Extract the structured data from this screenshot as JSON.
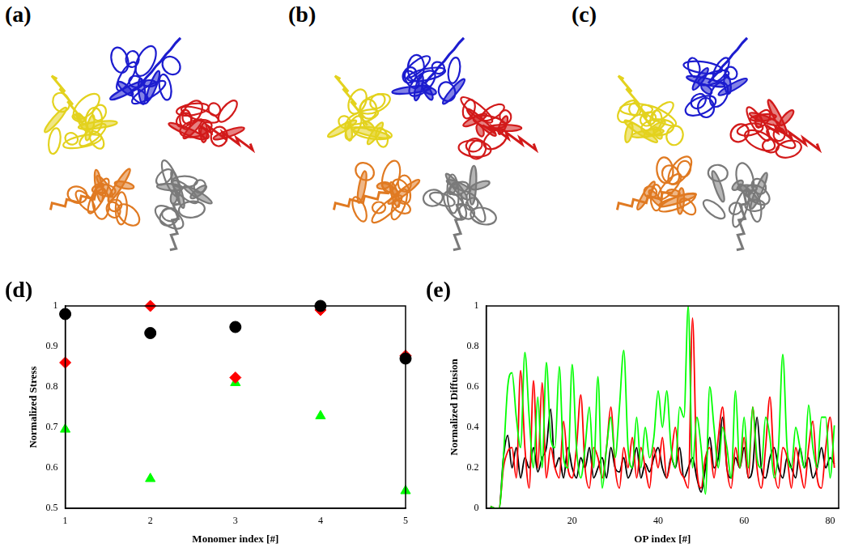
{
  "images": [
    {
      "label": "(a)"
    },
    {
      "label": "(b)"
    },
    {
      "label": "(c)"
    }
  ],
  "chart_data": [
    {
      "panel_label": "(d)",
      "type": "scatter",
      "x_label": "Monomer index [#]",
      "y_label": "Normalized Stress",
      "x": [
        1,
        2,
        3,
        4,
        5
      ],
      "xlim": [
        1,
        5
      ],
      "xticks": [
        1,
        2,
        3,
        4,
        5
      ],
      "ylim": [
        0.5,
        1
      ],
      "yticks": [
        0.5,
        0.6,
        0.7,
        0.8,
        0.9,
        1
      ],
      "grid": false,
      "series": [
        {
          "color": "#000000",
          "marker": "circle",
          "values": [
            0.98,
            0.933,
            0.948,
            1.0,
            0.87
          ]
        },
        {
          "color": "#ff0000",
          "marker": "diamond",
          "values": [
            0.86,
            1.0,
            0.823,
            0.99,
            0.877
          ]
        },
        {
          "color": "#00ff00",
          "marker": "triangle",
          "values": [
            0.695,
            0.573,
            0.81,
            0.728,
            0.543
          ]
        }
      ]
    },
    {
      "panel_label": "(e)",
      "type": "line",
      "x_label": "OP index [#]",
      "y_label": "Normalized Diffusion",
      "x": [
        1,
        2,
        3,
        4,
        5,
        6,
        7,
        8,
        9,
        10,
        11,
        12,
        13,
        14,
        15,
        16,
        17,
        18,
        19,
        20,
        21,
        22,
        23,
        24,
        25,
        26,
        27,
        28,
        29,
        30,
        31,
        32,
        33,
        34,
        35,
        36,
        37,
        38,
        39,
        40,
        41,
        42,
        43,
        44,
        45,
        46,
        47,
        48,
        49,
        50,
        51,
        52,
        53,
        54,
        55,
        56,
        57,
        58,
        59,
        60,
        61,
        62,
        63,
        64,
        65,
        66,
        67,
        68,
        69,
        70,
        71,
        72,
        73,
        74,
        75,
        76,
        77,
        78,
        79,
        80,
        81
      ],
      "xlim": [
        0,
        82
      ],
      "xticks": [
        20,
        40,
        60,
        80
      ],
      "ylim": [
        0,
        1
      ],
      "yticks": [
        0,
        0.2,
        0.4,
        0.6,
        0.8,
        1
      ],
      "grid": false,
      "series": [
        {
          "color": "#00ff00",
          "values": [
            0.01,
            0,
            0,
            0.25,
            0.6,
            0.67,
            0.45,
            0.3,
            0.77,
            0.45,
            0.2,
            0.55,
            0.2,
            0.72,
            0.35,
            0.3,
            0.7,
            0.25,
            0.2,
            0.71,
            0.3,
            0.15,
            0.3,
            0.5,
            0.2,
            0.65,
            0.1,
            0.3,
            0.45,
            0.25,
            0.5,
            0.78,
            0.3,
            0.2,
            0.45,
            0.2,
            0.4,
            0.25,
            0.35,
            0.58,
            0.4,
            0.58,
            0.3,
            0.2,
            0.5,
            0.45,
            1.0,
            0.2,
            0.45,
            0.3,
            0.07,
            0.6,
            0.4,
            0.2,
            0.4,
            0.3,
            0.15,
            0.58,
            0.2,
            0.45,
            0.2,
            0.5,
            0.25,
            0.2,
            0.45,
            0.35,
            0.15,
            0.3,
            0.76,
            0.3,
            0.2,
            0.4,
            0.3,
            0.2,
            0.51,
            0.3,
            0.2,
            0.45,
            0.45,
            0.15,
            0.41
          ]
        },
        {
          "color": "#ff0000",
          "values": [
            0.01,
            0,
            0,
            0.2,
            0.28,
            0.3,
            0.15,
            0.68,
            0.3,
            0.1,
            0.63,
            0.2,
            0.62,
            0.15,
            0.3,
            0.2,
            0.15,
            0.43,
            0.2,
            0.15,
            0.3,
            0.56,
            0.2,
            0.1,
            0.3,
            0.25,
            0.15,
            0.3,
            0.5,
            0.2,
            0.1,
            0.3,
            0.2,
            0.35,
            0.15,
            0.3,
            0.2,
            0.1,
            0.3,
            0.2,
            0.35,
            0.15,
            0.25,
            0.4,
            0.2,
            0.15,
            0.1,
            0.94,
            0.2,
            0.1,
            0.25,
            0.3,
            0.15,
            0.35,
            0.5,
            0.2,
            0.1,
            0.3,
            0.2,
            0.35,
            0.15,
            0.5,
            0.2,
            0.1,
            0.3,
            0.55,
            0.2,
            0.1,
            0.3,
            0.25,
            0.1,
            0.3,
            0.2,
            0.1,
            0.3,
            0.43,
            0.15,
            0.1,
            0.3,
            0.45,
            0.2
          ]
        },
        {
          "color": "#000000",
          "values": [
            0.01,
            0,
            0,
            0.25,
            0.36,
            0.2,
            0.3,
            0.15,
            0.25,
            0.2,
            0.3,
            0.18,
            0.25,
            0.3,
            0.49,
            0.2,
            0.25,
            0.15,
            0.3,
            0.2,
            0.15,
            0.25,
            0.2,
            0.3,
            0.15,
            0.2,
            0.25,
            0.15,
            0.3,
            0.2,
            0.18,
            0.25,
            0.15,
            0.2,
            0.3,
            0.15,
            0.22,
            0.18,
            0.25,
            0.3,
            0.2,
            0.15,
            0.25,
            0.2,
            0.3,
            0.15,
            0.2,
            0.25,
            0.15,
            0.08,
            0.2,
            0.35,
            0.2,
            0.25,
            0.45,
            0.2,
            0.15,
            0.25,
            0.2,
            0.3,
            0.15,
            0.2,
            0.45,
            0.2,
            0.15,
            0.25,
            0.3,
            0.2,
            0.15,
            0.25,
            0.2,
            0.15,
            0.3,
            0.2,
            0.25,
            0.15,
            0.2,
            0.3,
            0.2,
            0.25,
            0.22
          ]
        }
      ]
    }
  ]
}
